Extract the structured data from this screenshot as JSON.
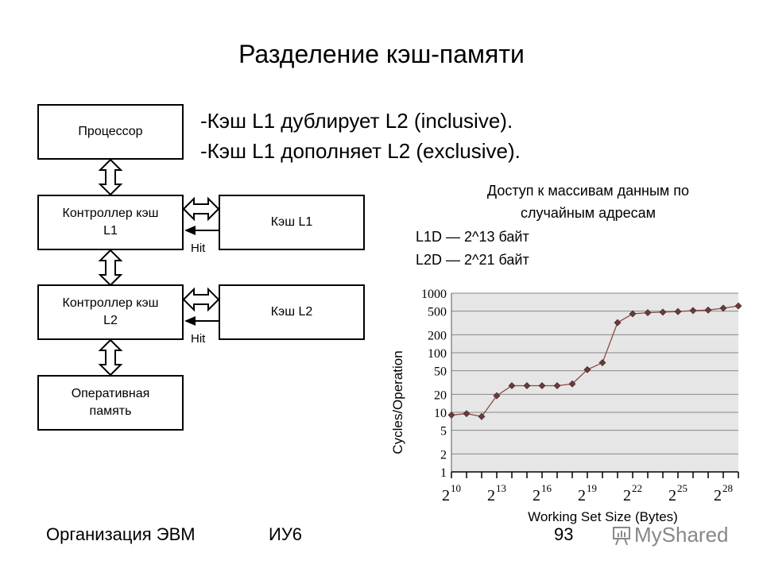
{
  "slide": {
    "title": "Разделение кэш-памяти",
    "bullets": [
      "-Кэш L1 дублирует L2 (inclusive).",
      "-Кэш L1 дополняет L2 (exclusive)."
    ]
  },
  "diagram": {
    "blocks": {
      "processor": "Процессор",
      "ctrl_l1": [
        "Контроллер кэш",
        "L1"
      ],
      "ctrl_l2": [
        "Контроллер кэш",
        "L2"
      ],
      "ram": [
        "Оперативная",
        "память"
      ],
      "cache_l1": "Кэш L1",
      "cache_l2": "Кэш L2"
    },
    "hit_label": "Hit"
  },
  "notes": {
    "caption_line1": "Доступ к массивам  данным по",
    "caption_line2": "случайным адресам",
    "l1d": "L1D — 2^13 байт",
    "l2d": "L2D — 2^21 байт"
  },
  "chart_data": {
    "type": "line",
    "title": "",
    "xlabel": "Working Set Size (Bytes)",
    "ylabel": "Cycles/Operation",
    "xscale": "log2",
    "yscale": "log",
    "x_exponents": [
      10,
      11,
      12,
      13,
      14,
      15,
      16,
      17,
      18,
      19,
      20,
      21,
      22,
      23,
      24,
      25,
      26,
      27,
      28,
      29
    ],
    "x_tick_labels": [
      "2^10",
      "2^13",
      "2^16",
      "2^19",
      "2^22",
      "2^25",
      "2^28"
    ],
    "y_ticks": [
      1,
      2,
      5,
      10,
      20,
      50,
      100,
      200,
      500,
      1000
    ],
    "ylim": [
      1,
      1000
    ],
    "grid": true,
    "series": [
      {
        "name": "cycles",
        "color": "#8b4a4a",
        "marker_color": "#6b3b3b",
        "values": [
          9,
          9.5,
          8.5,
          19,
          28,
          28,
          28,
          28,
          30,
          52,
          68,
          320,
          450,
          470,
          480,
          490,
          510,
          520,
          560,
          610
        ]
      }
    ],
    "plot_bg": "#e6e6e6"
  },
  "footer": {
    "course": "Организация ЭВМ",
    "group": "ИУ6",
    "page": "93",
    "watermark": "MyShared"
  }
}
